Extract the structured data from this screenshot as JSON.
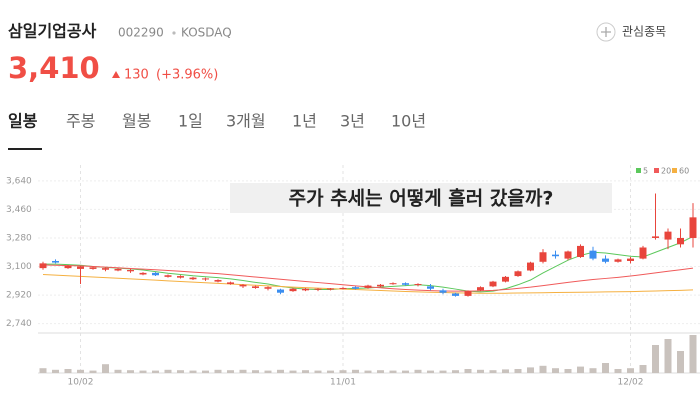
{
  "header": {
    "title": "삼일기업공사",
    "code": "002290",
    "market": "KOSDAQ",
    "price": "3,410",
    "change": "130",
    "change_pct": "(+3.96%)",
    "watch_button": "관심종목"
  },
  "tabs": [
    "일봉",
    "주봉",
    "월봉",
    "1일",
    "3개월",
    "1년",
    "3년",
    "10년"
  ],
  "chart_data": {
    "type": "candlestick",
    "annotation": "주가 추세는 어떻게 흘러 갔을까?",
    "categories": [
      null,
      null,
      null,
      "10/02",
      null,
      null,
      null,
      null,
      null,
      null,
      null,
      null,
      null,
      null,
      null,
      null,
      null,
      null,
      null,
      null,
      null,
      null,
      null,
      null,
      "11/01",
      null,
      null,
      null,
      null,
      null,
      null,
      null,
      null,
      null,
      null,
      null,
      null,
      null,
      null,
      null,
      null,
      null,
      null,
      null,
      null,
      null,
      null,
      "12/02",
      null,
      null,
      null,
      null,
      null
    ],
    "open": [
      3090,
      3135,
      3090,
      3085,
      3085,
      3080,
      3075,
      3070,
      3050,
      3060,
      3035,
      3030,
      3020,
      3020,
      3005,
      2990,
      2975,
      2965,
      2960,
      2955,
      2945,
      2950,
      2955,
      2955,
      2960,
      2970,
      2965,
      2975,
      2990,
      2995,
      2985,
      2975,
      2950,
      2930,
      2915,
      2950,
      2975,
      3005,
      3040,
      3075,
      3130,
      3175,
      3150,
      3160,
      3200,
      3150,
      3130,
      3135,
      3150,
      3280,
      3270,
      3240,
      3280
    ],
    "high": [
      3130,
      3145,
      3110,
      3105,
      3100,
      3095,
      3090,
      3085,
      3065,
      3065,
      3050,
      3045,
      3035,
      3030,
      3020,
      3005,
      2990,
      2980,
      2975,
      2960,
      2965,
      2965,
      2965,
      2965,
      2970,
      2975,
      2985,
      2990,
      3000,
      3000,
      2995,
      2990,
      2960,
      2935,
      2950,
      2975,
      3010,
      3040,
      3075,
      3130,
      3210,
      3200,
      3200,
      3240,
      3225,
      3170,
      3150,
      3160,
      3230,
      3560,
      3340,
      3340,
      3500
    ],
    "low": [
      3080,
      3120,
      3085,
      2990,
      3080,
      3070,
      3070,
      3060,
      3045,
      3040,
      3030,
      3025,
      3015,
      3010,
      3000,
      2985,
      2965,
      2960,
      2950,
      2925,
      2940,
      2945,
      2945,
      2950,
      2955,
      2955,
      2960,
      2970,
      2985,
      2980,
      2975,
      2950,
      2925,
      2910,
      2910,
      2945,
      2970,
      3000,
      3035,
      3070,
      3120,
      3150,
      3140,
      3155,
      3140,
      3120,
      3125,
      3120,
      3145,
      3270,
      3210,
      3220,
      3220
    ],
    "close": [
      3120,
      3125,
      3105,
      3100,
      3095,
      3090,
      3085,
      3078,
      3060,
      3045,
      3045,
      3040,
      3030,
      3025,
      3015,
      3000,
      2985,
      2975,
      2970,
      2935,
      2960,
      2960,
      2960,
      2962,
      2965,
      2960,
      2980,
      2985,
      2995,
      2985,
      2990,
      2960,
      2935,
      2915,
      2945,
      2970,
      3005,
      3035,
      3070,
      3125,
      3190,
      3165,
      3195,
      3230,
      3150,
      3130,
      3145,
      3150,
      3220,
      3290,
      3320,
      3280,
      3410
    ],
    "volume": [
      12,
      8,
      10,
      8,
      6,
      22,
      8,
      7,
      6,
      6,
      8,
      7,
      6,
      6,
      8,
      7,
      8,
      7,
      6,
      8,
      6,
      7,
      6,
      6,
      7,
      8,
      6,
      7,
      6,
      6,
      8,
      6,
      6,
      7,
      10,
      8,
      7,
      9,
      10,
      14,
      18,
      12,
      10,
      16,
      12,
      25,
      10,
      12,
      20,
      70,
      85,
      55,
      95
    ],
    "volume_lim": [
      0,
      100
    ],
    "volume_color": "#c9c2bd",
    "up_color": "#e8453c",
    "down_color": "#3b8ef0",
    "series": [
      {
        "name": "5",
        "color": "#5cc85c",
        "values": [
          3115,
          3115,
          3112,
          3108,
          3100,
          3095,
          3090,
          3085,
          3078,
          3068,
          3058,
          3050,
          3042,
          3036,
          3030,
          3022,
          3012,
          3000,
          2990,
          2975,
          2965,
          2958,
          2955,
          2955,
          2960,
          2962,
          2965,
          2970,
          2975,
          2980,
          2985,
          2980,
          2970,
          2958,
          2945,
          2940,
          2945,
          2960,
          2985,
          3015,
          3060,
          3100,
          3140,
          3170,
          3190,
          3185,
          3175,
          3165,
          3160,
          3190,
          3220,
          3250,
          3290
        ]
      },
      {
        "name": "20",
        "color": "#f05a5a",
        "values": [
          3110,
          3108,
          3106,
          3104,
          3100,
          3096,
          3092,
          3088,
          3084,
          3080,
          3075,
          3070,
          3065,
          3060,
          3055,
          3048,
          3041,
          3034,
          3027,
          3020,
          3013,
          3006,
          2999,
          2992,
          2985,
          2978,
          2972,
          2966,
          2960,
          2955,
          2951,
          2948,
          2946,
          2945,
          2945,
          2947,
          2950,
          2955,
          2962,
          2970,
          2980,
          2990,
          3000,
          3010,
          3018,
          3025,
          3032,
          3040,
          3050,
          3060,
          3070,
          3080,
          3090
        ]
      },
      {
        "name": "60",
        "color": "#f5b041",
        "values": [
          3050,
          3046,
          3042,
          3038,
          3034,
          3030,
          3026,
          3022,
          3018,
          3014,
          3010,
          3006,
          3002,
          2998,
          2994,
          2990,
          2986,
          2982,
          2978,
          2974,
          2970,
          2967,
          2964,
          2961,
          2958,
          2955,
          2952,
          2949,
          2946,
          2943,
          2940,
          2938,
          2936,
          2934,
          2933,
          2932,
          2932,
          2932,
          2933,
          2934,
          2935,
          2936,
          2937,
          2938,
          2939,
          2940,
          2941,
          2942,
          2944,
          2946,
          2948,
          2950,
          2953
        ]
      }
    ],
    "ylim": [
      2700,
      3740
    ],
    "yticks": [
      {
        "value": 2740,
        "label": "2,740"
      },
      {
        "value": 2920,
        "label": "2,920"
      },
      {
        "value": 3100,
        "label": "3,100"
      },
      {
        "value": 3280,
        "label": "3,280"
      },
      {
        "value": 3460,
        "label": "3,460"
      },
      {
        "value": 3640,
        "label": "3,640"
      }
    ],
    "grid": true
  }
}
